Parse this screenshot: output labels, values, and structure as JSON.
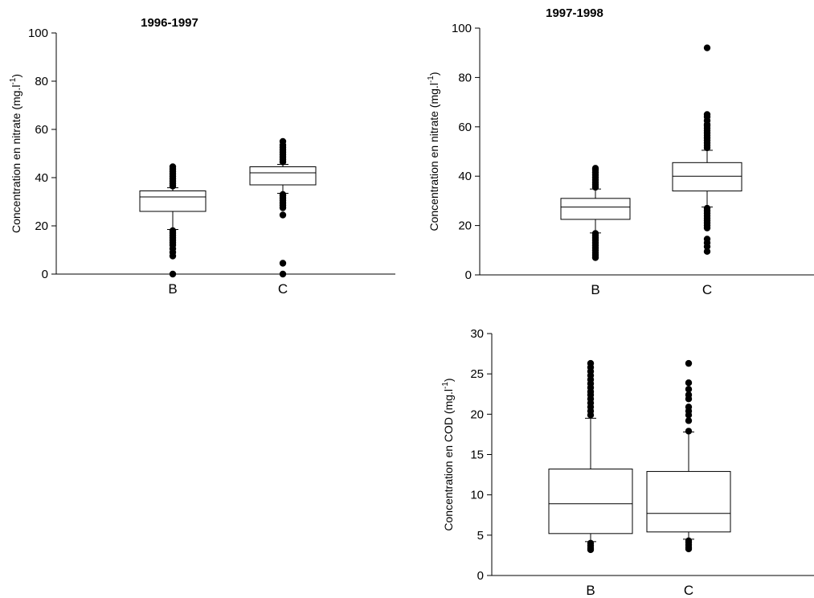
{
  "chart_data": [
    {
      "type": "box",
      "title": "1996-1997",
      "ylabel": "Concentration en nitrate (mg.l-1)",
      "ylabel_main": "Concentration en nitrate (mg.l",
      "ylabel_sup": "-1",
      "ylabel_end": ")",
      "xlabel": "",
      "ylim": [
        0,
        100
      ],
      "yticks": [
        0,
        20,
        40,
        60,
        80,
        100
      ],
      "categories": [
        "B",
        "C"
      ],
      "boxes": [
        {
          "name": "B",
          "whisker_low": 18.5,
          "q1": 26,
          "median": 32,
          "q3": 34.5,
          "whisker_high": 35.8,
          "outliers": [
            0,
            7.5,
            9,
            10.5,
            12,
            13,
            14,
            15,
            16,
            17,
            18,
            36.5,
            37.5,
            38.5,
            39.5,
            40.5,
            41.5,
            42.5,
            43.5,
            44.5
          ]
        },
        {
          "name": "C",
          "whisker_low": 33.5,
          "q1": 37,
          "median": 42,
          "q3": 44.5,
          "whisker_high": 45.5,
          "outliers": [
            0,
            4.5,
            24.5,
            27.5,
            28.5,
            29.5,
            30.5,
            31.5,
            32.5,
            33,
            46.5,
            47.5,
            48.5,
            49.5,
            50.5,
            51.5,
            52.5,
            53.5,
            55
          ]
        }
      ]
    },
    {
      "type": "box",
      "title": "1997-1998",
      "ylabel": "Concentration en nitrate (mg.l-1)",
      "ylabel_main": "Concentration en nitrate (mg.l",
      "ylabel_sup": "-1",
      "ylabel_end": ")",
      "xlabel": "",
      "ylim": [
        0,
        100
      ],
      "yticks": [
        0,
        20,
        40,
        60,
        80,
        100
      ],
      "categories": [
        "B",
        "C"
      ],
      "boxes": [
        {
          "name": "B",
          "whisker_low": 17,
          "q1": 22.5,
          "median": 27.5,
          "q3": 31,
          "whisker_high": 34.8,
          "outliers": [
            7,
            8,
            9,
            10,
            11,
            12,
            13,
            14,
            15,
            16,
            16.8,
            35.5,
            36.5,
            37.5,
            38.5,
            39.5,
            40.5,
            41.5,
            42.5,
            43.2
          ]
        },
        {
          "name": "C",
          "whisker_low": 27.5,
          "q1": 34,
          "median": 40,
          "q3": 45.5,
          "whisker_high": 50.5,
          "outliers": [
            9.5,
            11.5,
            13,
            14.5,
            19,
            20,
            21,
            22,
            23,
            24,
            25,
            26,
            27,
            51.5,
            52.5,
            53.5,
            54.5,
            55.5,
            56.5,
            57.5,
            58.5,
            59.5,
            60.5,
            61,
            62.5,
            64,
            65,
            92
          ]
        }
      ]
    },
    {
      "type": "box",
      "title": "",
      "ylabel": "Concentration en COD (mg.l-1)",
      "ylabel_main": "Concentration en COD (mg.l",
      "ylabel_sup": "-1",
      "ylabel_end": ")",
      "xlabel": "",
      "ylim": [
        0,
        30
      ],
      "yticks": [
        0,
        5,
        10,
        15,
        20,
        25,
        30
      ],
      "categories": [
        "B",
        "C"
      ],
      "boxes": [
        {
          "name": "B",
          "whisker_low": 4.2,
          "q1": 5.2,
          "median": 8.9,
          "q3": 13.2,
          "whisker_high": 19.5,
          "outliers": [
            3.2,
            3.4,
            3.7,
            4.0,
            19.9,
            20.4,
            20.9,
            21.4,
            21.9,
            22.4,
            22.8,
            23.3,
            23.8,
            24.3,
            24.8,
            25.3,
            25.8,
            26.3
          ]
        },
        {
          "name": "C",
          "whisker_low": 4.5,
          "q1": 5.4,
          "median": 7.7,
          "q3": 12.9,
          "whisker_high": 17.8,
          "outliers": [
            3.3,
            3.5,
            3.8,
            4.1,
            4.3,
            17.9,
            19.2,
            19.9,
            20.4,
            20.9,
            21.9,
            22.4,
            23.1,
            23.9,
            26.3
          ]
        }
      ]
    }
  ]
}
